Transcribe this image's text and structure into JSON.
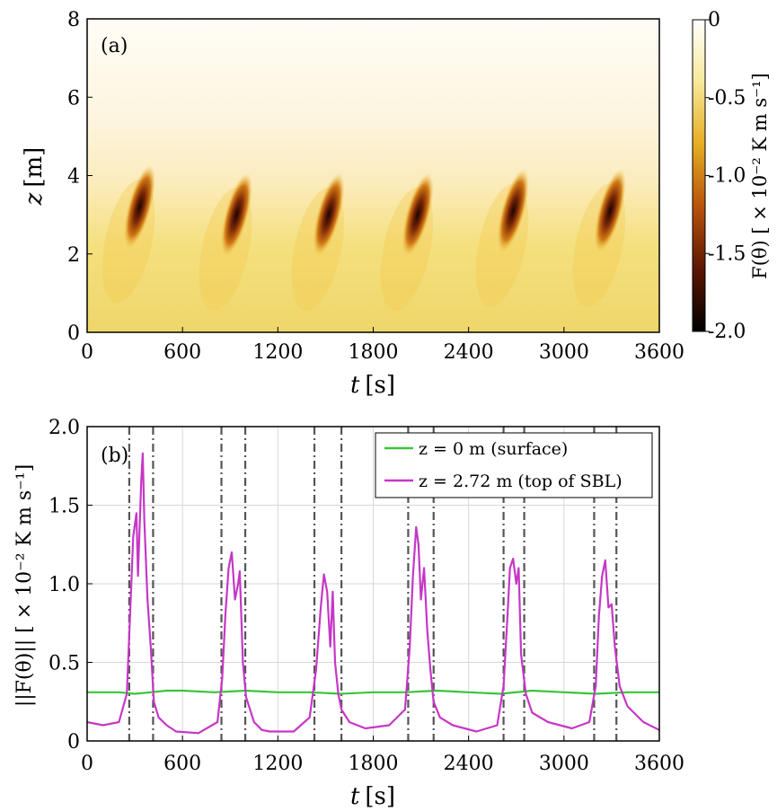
{
  "chart_data": [
    {
      "type": "heatmap",
      "panel_label": "(a)",
      "xlabel_var": "t",
      "xlabel_unit": "[s]",
      "ylabel_var": "z",
      "ylabel_unit": "[m]",
      "xlim": [
        0,
        3600
      ],
      "ylim": [
        0,
        8
      ],
      "xticks": [
        "0",
        "600",
        "1200",
        "1800",
        "2400",
        "3000",
        "3600"
      ],
      "yticks": [
        "0",
        "2",
        "4",
        "6",
        "8"
      ],
      "colorbar": {
        "label": "F(θ) [ × 10⁻² K m s⁻¹]",
        "range": [
          -2.0,
          0
        ],
        "ticks": [
          "0",
          "-0.5",
          "-1.0",
          "-1.5",
          "-2.0"
        ],
        "colors": [
          "#ffffff",
          "#f8e89a",
          "#e6ad22",
          "#b8520c",
          "#5c1603",
          "#000000"
        ]
      },
      "events": [
        {
          "t": 330,
          "z": 3.2
        },
        {
          "t": 940,
          "z": 3.0
        },
        {
          "t": 1520,
          "z": 3.0
        },
        {
          "t": 2080,
          "z": 3.0
        },
        {
          "t": 2680,
          "z": 3.1
        },
        {
          "t": 3290,
          "z": 3.1
        }
      ]
    },
    {
      "type": "line",
      "panel_label": "(b)",
      "xlabel_var": "t",
      "xlabel_unit": "[s]",
      "ylabel": "||F(θ)|| [ × 10⁻² K m s⁻¹]",
      "xlim": [
        0,
        3600
      ],
      "ylim": [
        0,
        2.0
      ],
      "xticks": [
        "0",
        "600",
        "1200",
        "1800",
        "2400",
        "3000",
        "3600"
      ],
      "yticks": [
        "0",
        "0.5",
        "1.0",
        "1.5",
        "2.0"
      ],
      "grid": true,
      "legend": "top-right",
      "vlines": [
        265,
        415,
        845,
        995,
        1430,
        1600,
        2020,
        2180,
        2620,
        2750,
        3190,
        3330
      ],
      "series": [
        {
          "name": "z = 0 m (surface)",
          "color": "#3ac43a",
          "x": [
            0,
            200,
            300,
            400,
            500,
            600,
            800,
            1000,
            1200,
            1400,
            1600,
            1800,
            2000,
            2200,
            2400,
            2600,
            2800,
            3000,
            3200,
            3400,
            3600
          ],
          "values": [
            0.31,
            0.31,
            0.3,
            0.31,
            0.32,
            0.32,
            0.31,
            0.32,
            0.31,
            0.31,
            0.3,
            0.31,
            0.31,
            0.32,
            0.31,
            0.3,
            0.32,
            0.31,
            0.3,
            0.31,
            0.31
          ]
        },
        {
          "name": "z = 2.72 m (top of SBL)",
          "color": "#c637c6",
          "x": [
            0,
            100,
            200,
            250,
            270,
            290,
            310,
            320,
            340,
            350,
            360,
            380,
            400,
            420,
            450,
            500,
            560,
            700,
            820,
            850,
            870,
            890,
            910,
            930,
            950,
            960,
            980,
            1000,
            1050,
            1100,
            1150,
            1300,
            1400,
            1440,
            1470,
            1490,
            1510,
            1530,
            1545,
            1560,
            1580,
            1600,
            1650,
            1750,
            1900,
            2000,
            2030,
            2050,
            2070,
            2085,
            2100,
            2120,
            2140,
            2160,
            2180,
            2220,
            2300,
            2450,
            2580,
            2620,
            2645,
            2660,
            2680,
            2700,
            2715,
            2730,
            2760,
            2800,
            2900,
            3050,
            3160,
            3200,
            3220,
            3240,
            3260,
            3280,
            3300,
            3320,
            3350,
            3400,
            3500,
            3600
          ],
          "values": [
            0.12,
            0.1,
            0.12,
            0.3,
            0.8,
            1.3,
            1.45,
            1.05,
            1.65,
            1.83,
            1.4,
            0.9,
            0.6,
            0.25,
            0.15,
            0.1,
            0.06,
            0.05,
            0.12,
            0.4,
            0.8,
            1.1,
            1.2,
            0.9,
            1.0,
            1.08,
            0.5,
            0.28,
            0.12,
            0.07,
            0.06,
            0.06,
            0.15,
            0.45,
            0.85,
            1.06,
            0.95,
            0.6,
            0.95,
            0.5,
            0.3,
            0.2,
            0.12,
            0.08,
            0.1,
            0.2,
            0.6,
            1.05,
            1.36,
            1.25,
            0.9,
            1.1,
            0.7,
            0.45,
            0.25,
            0.15,
            0.1,
            0.06,
            0.1,
            0.35,
            0.8,
            1.1,
            1.16,
            1.0,
            1.1,
            0.55,
            0.3,
            0.18,
            0.12,
            0.08,
            0.12,
            0.35,
            0.8,
            1.05,
            1.15,
            0.85,
            0.87,
            0.6,
            0.35,
            0.22,
            0.12,
            0.07
          ]
        }
      ]
    }
  ]
}
